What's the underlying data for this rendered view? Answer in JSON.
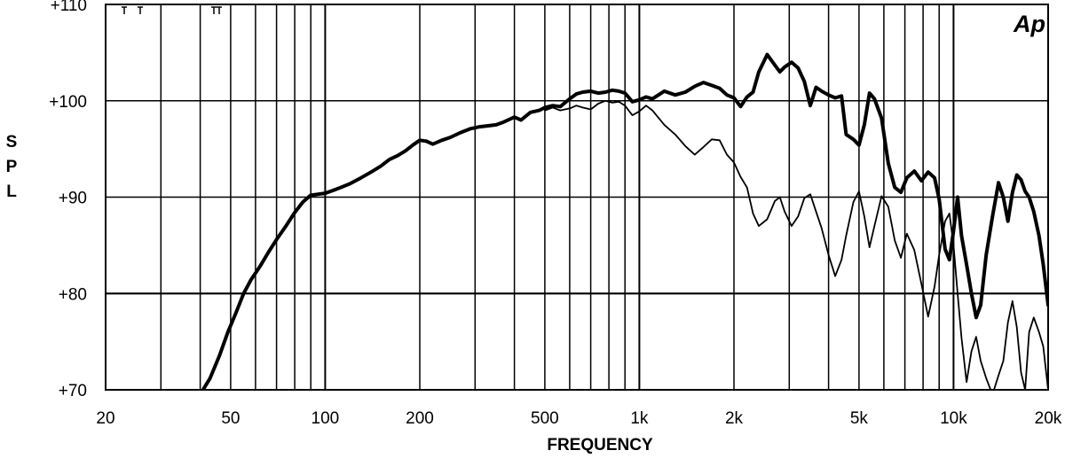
{
  "chart_data": {
    "type": "line",
    "xscale": "log",
    "xlabel": "FREQUENCY",
    "ylabel": "SPL",
    "xlim": [
      20,
      20000
    ],
    "ylim": [
      70,
      110
    ],
    "grid": true,
    "logo": "Ap",
    "x_tick_labels": [
      {
        "x": 20,
        "label": "20"
      },
      {
        "x": 50,
        "label": "50"
      },
      {
        "x": 100,
        "label": "100"
      },
      {
        "x": 200,
        "label": "200"
      },
      {
        "x": 500,
        "label": "500"
      },
      {
        "x": 1000,
        "label": "1k"
      },
      {
        "x": 2000,
        "label": "2k"
      },
      {
        "x": 5000,
        "label": "5k"
      },
      {
        "x": 10000,
        "label": "10k"
      },
      {
        "x": 20000,
        "label": "20k"
      }
    ],
    "y_tick_labels": [
      {
        "y": 110,
        "label": "+110"
      },
      {
        "y": 100,
        "label": "+100"
      },
      {
        "y": 90,
        "label": "+90"
      },
      {
        "y": 80,
        "label": "+80"
      },
      {
        "y": 70,
        "label": "+70"
      }
    ],
    "series": [
      {
        "style": "thick",
        "points": [
          [
            41,
            70.1
          ],
          [
            43,
            71.2
          ],
          [
            46,
            73.5
          ],
          [
            49,
            76.0
          ],
          [
            52,
            78.0
          ],
          [
            55,
            80.0
          ],
          [
            58,
            81.4
          ],
          [
            62,
            82.8
          ],
          [
            66,
            84.3
          ],
          [
            70,
            85.6
          ],
          [
            75,
            87.0
          ],
          [
            80,
            88.4
          ],
          [
            85,
            89.5
          ],
          [
            90,
            90.2
          ],
          [
            95,
            90.3
          ],
          [
            100,
            90.4
          ],
          [
            106,
            90.7
          ],
          [
            112,
            91.0
          ],
          [
            120,
            91.4
          ],
          [
            130,
            92.0
          ],
          [
            140,
            92.6
          ],
          [
            150,
            93.2
          ],
          [
            160,
            93.9
          ],
          [
            170,
            94.3
          ],
          [
            180,
            94.8
          ],
          [
            190,
            95.4
          ],
          [
            200,
            95.9
          ],
          [
            210,
            95.8
          ],
          [
            220,
            95.5
          ],
          [
            235,
            95.9
          ],
          [
            250,
            96.2
          ],
          [
            270,
            96.7
          ],
          [
            290,
            97.1
          ],
          [
            310,
            97.3
          ],
          [
            330,
            97.4
          ],
          [
            350,
            97.5
          ],
          [
            370,
            97.8
          ],
          [
            400,
            98.3
          ],
          [
            420,
            98.0
          ],
          [
            450,
            98.8
          ],
          [
            480,
            99.0
          ],
          [
            500,
            99.3
          ],
          [
            530,
            99.5
          ],
          [
            560,
            99.4
          ],
          [
            600,
            100.2
          ],
          [
            630,
            100.7
          ],
          [
            660,
            100.9
          ],
          [
            700,
            101.0
          ],
          [
            740,
            100.8
          ],
          [
            780,
            100.9
          ],
          [
            820,
            101.1
          ],
          [
            860,
            101.0
          ],
          [
            900,
            100.8
          ],
          [
            950,
            99.9
          ],
          [
            1000,
            100.1
          ],
          [
            1050,
            100.4
          ],
          [
            1100,
            100.2
          ],
          [
            1200,
            101.0
          ],
          [
            1300,
            100.6
          ],
          [
            1400,
            100.9
          ],
          [
            1500,
            101.5
          ],
          [
            1600,
            101.9
          ],
          [
            1700,
            101.6
          ],
          [
            1800,
            101.3
          ],
          [
            1900,
            100.6
          ],
          [
            2000,
            100.3
          ],
          [
            2100,
            99.4
          ],
          [
            2200,
            100.4
          ],
          [
            2300,
            100.9
          ],
          [
            2400,
            103.0
          ],
          [
            2550,
            104.8
          ],
          [
            2700,
            103.7
          ],
          [
            2800,
            103.0
          ],
          [
            2900,
            103.5
          ],
          [
            3050,
            104.0
          ],
          [
            3200,
            103.4
          ],
          [
            3350,
            102.0
          ],
          [
            3500,
            99.5
          ],
          [
            3650,
            101.4
          ],
          [
            3800,
            101.0
          ],
          [
            4000,
            100.6
          ],
          [
            4200,
            100.3
          ],
          [
            4400,
            100.5
          ],
          [
            4550,
            96.5
          ],
          [
            4800,
            96.0
          ],
          [
            5000,
            95.4
          ],
          [
            5200,
            97.5
          ],
          [
            5400,
            100.8
          ],
          [
            5600,
            100.2
          ],
          [
            5900,
            98.2
          ],
          [
            6200,
            93.5
          ],
          [
            6500,
            91.0
          ],
          [
            6800,
            90.5
          ],
          [
            7100,
            92.0
          ],
          [
            7500,
            92.7
          ],
          [
            7900,
            91.7
          ],
          [
            8300,
            92.6
          ],
          [
            8700,
            92.0
          ],
          [
            9000,
            89.8
          ],
          [
            9400,
            84.6
          ],
          [
            9700,
            83.5
          ],
          [
            10000,
            86.5
          ],
          [
            10300,
            90.0
          ],
          [
            10600,
            86.0
          ],
          [
            11000,
            83.0
          ],
          [
            11400,
            80.0
          ],
          [
            11800,
            77.5
          ],
          [
            12200,
            78.8
          ],
          [
            12700,
            84.0
          ],
          [
            13300,
            88.0
          ],
          [
            13900,
            91.5
          ],
          [
            14400,
            90.0
          ],
          [
            14900,
            87.5
          ],
          [
            15400,
            90.5
          ],
          [
            15900,
            92.3
          ],
          [
            16400,
            91.8
          ],
          [
            16900,
            90.6
          ],
          [
            17400,
            90.0
          ],
          [
            18000,
            88.5
          ],
          [
            18700,
            86.0
          ],
          [
            19300,
            83.0
          ],
          [
            20000,
            78.8
          ]
        ]
      },
      {
        "style": "thin",
        "points": [
          [
            500,
            99.0
          ],
          [
            530,
            99.3
          ],
          [
            560,
            99.0
          ],
          [
            600,
            99.2
          ],
          [
            630,
            99.5
          ],
          [
            660,
            99.3
          ],
          [
            700,
            99.1
          ],
          [
            740,
            99.7
          ],
          [
            780,
            100.0
          ],
          [
            820,
            99.8
          ],
          [
            860,
            99.9
          ],
          [
            900,
            99.5
          ],
          [
            950,
            98.5
          ],
          [
            1000,
            98.9
          ],
          [
            1050,
            99.5
          ],
          [
            1100,
            99.0
          ],
          [
            1200,
            97.5
          ],
          [
            1300,
            96.5
          ],
          [
            1400,
            95.3
          ],
          [
            1500,
            94.4
          ],
          [
            1600,
            95.2
          ],
          [
            1700,
            96.0
          ],
          [
            1800,
            95.9
          ],
          [
            1900,
            94.4
          ],
          [
            2000,
            93.6
          ],
          [
            2100,
            92.1
          ],
          [
            2200,
            91.0
          ],
          [
            2300,
            88.3
          ],
          [
            2400,
            87.0
          ],
          [
            2550,
            87.7
          ],
          [
            2700,
            89.6
          ],
          [
            2800,
            90.0
          ],
          [
            2900,
            88.5
          ],
          [
            3050,
            87.0
          ],
          [
            3200,
            88.0
          ],
          [
            3350,
            89.9
          ],
          [
            3500,
            90.3
          ],
          [
            3650,
            88.5
          ],
          [
            3800,
            86.8
          ],
          [
            4000,
            84.0
          ],
          [
            4200,
            81.8
          ],
          [
            4400,
            83.5
          ],
          [
            4550,
            86.0
          ],
          [
            4800,
            89.5
          ],
          [
            5000,
            90.6
          ],
          [
            5200,
            88.0
          ],
          [
            5400,
            84.8
          ],
          [
            5600,
            87.0
          ],
          [
            5900,
            90.1
          ],
          [
            6200,
            89.0
          ],
          [
            6500,
            85.5
          ],
          [
            6800,
            83.7
          ],
          [
            7100,
            86.2
          ],
          [
            7500,
            84.5
          ],
          [
            7900,
            81.0
          ],
          [
            8300,
            77.6
          ],
          [
            8700,
            80.7
          ],
          [
            9000,
            84.0
          ],
          [
            9400,
            87.5
          ],
          [
            9700,
            88.3
          ],
          [
            10000,
            85.0
          ],
          [
            10300,
            80.0
          ],
          [
            10600,
            75.4
          ],
          [
            11000,
            70.8
          ],
          [
            11400,
            74.0
          ],
          [
            11800,
            75.5
          ],
          [
            12200,
            73.0
          ],
          [
            12700,
            71.2
          ],
          [
            13300,
            69.5
          ],
          [
            13900,
            71.5
          ],
          [
            14400,
            73.0
          ],
          [
            14900,
            77.0
          ],
          [
            15400,
            79.2
          ],
          [
            15900,
            76.5
          ],
          [
            16400,
            71.8
          ],
          [
            16900,
            70.0
          ],
          [
            17400,
            76.0
          ],
          [
            18000,
            77.5
          ],
          [
            18700,
            76.0
          ],
          [
            19300,
            74.5
          ],
          [
            20000,
            70.0
          ]
        ]
      }
    ]
  }
}
